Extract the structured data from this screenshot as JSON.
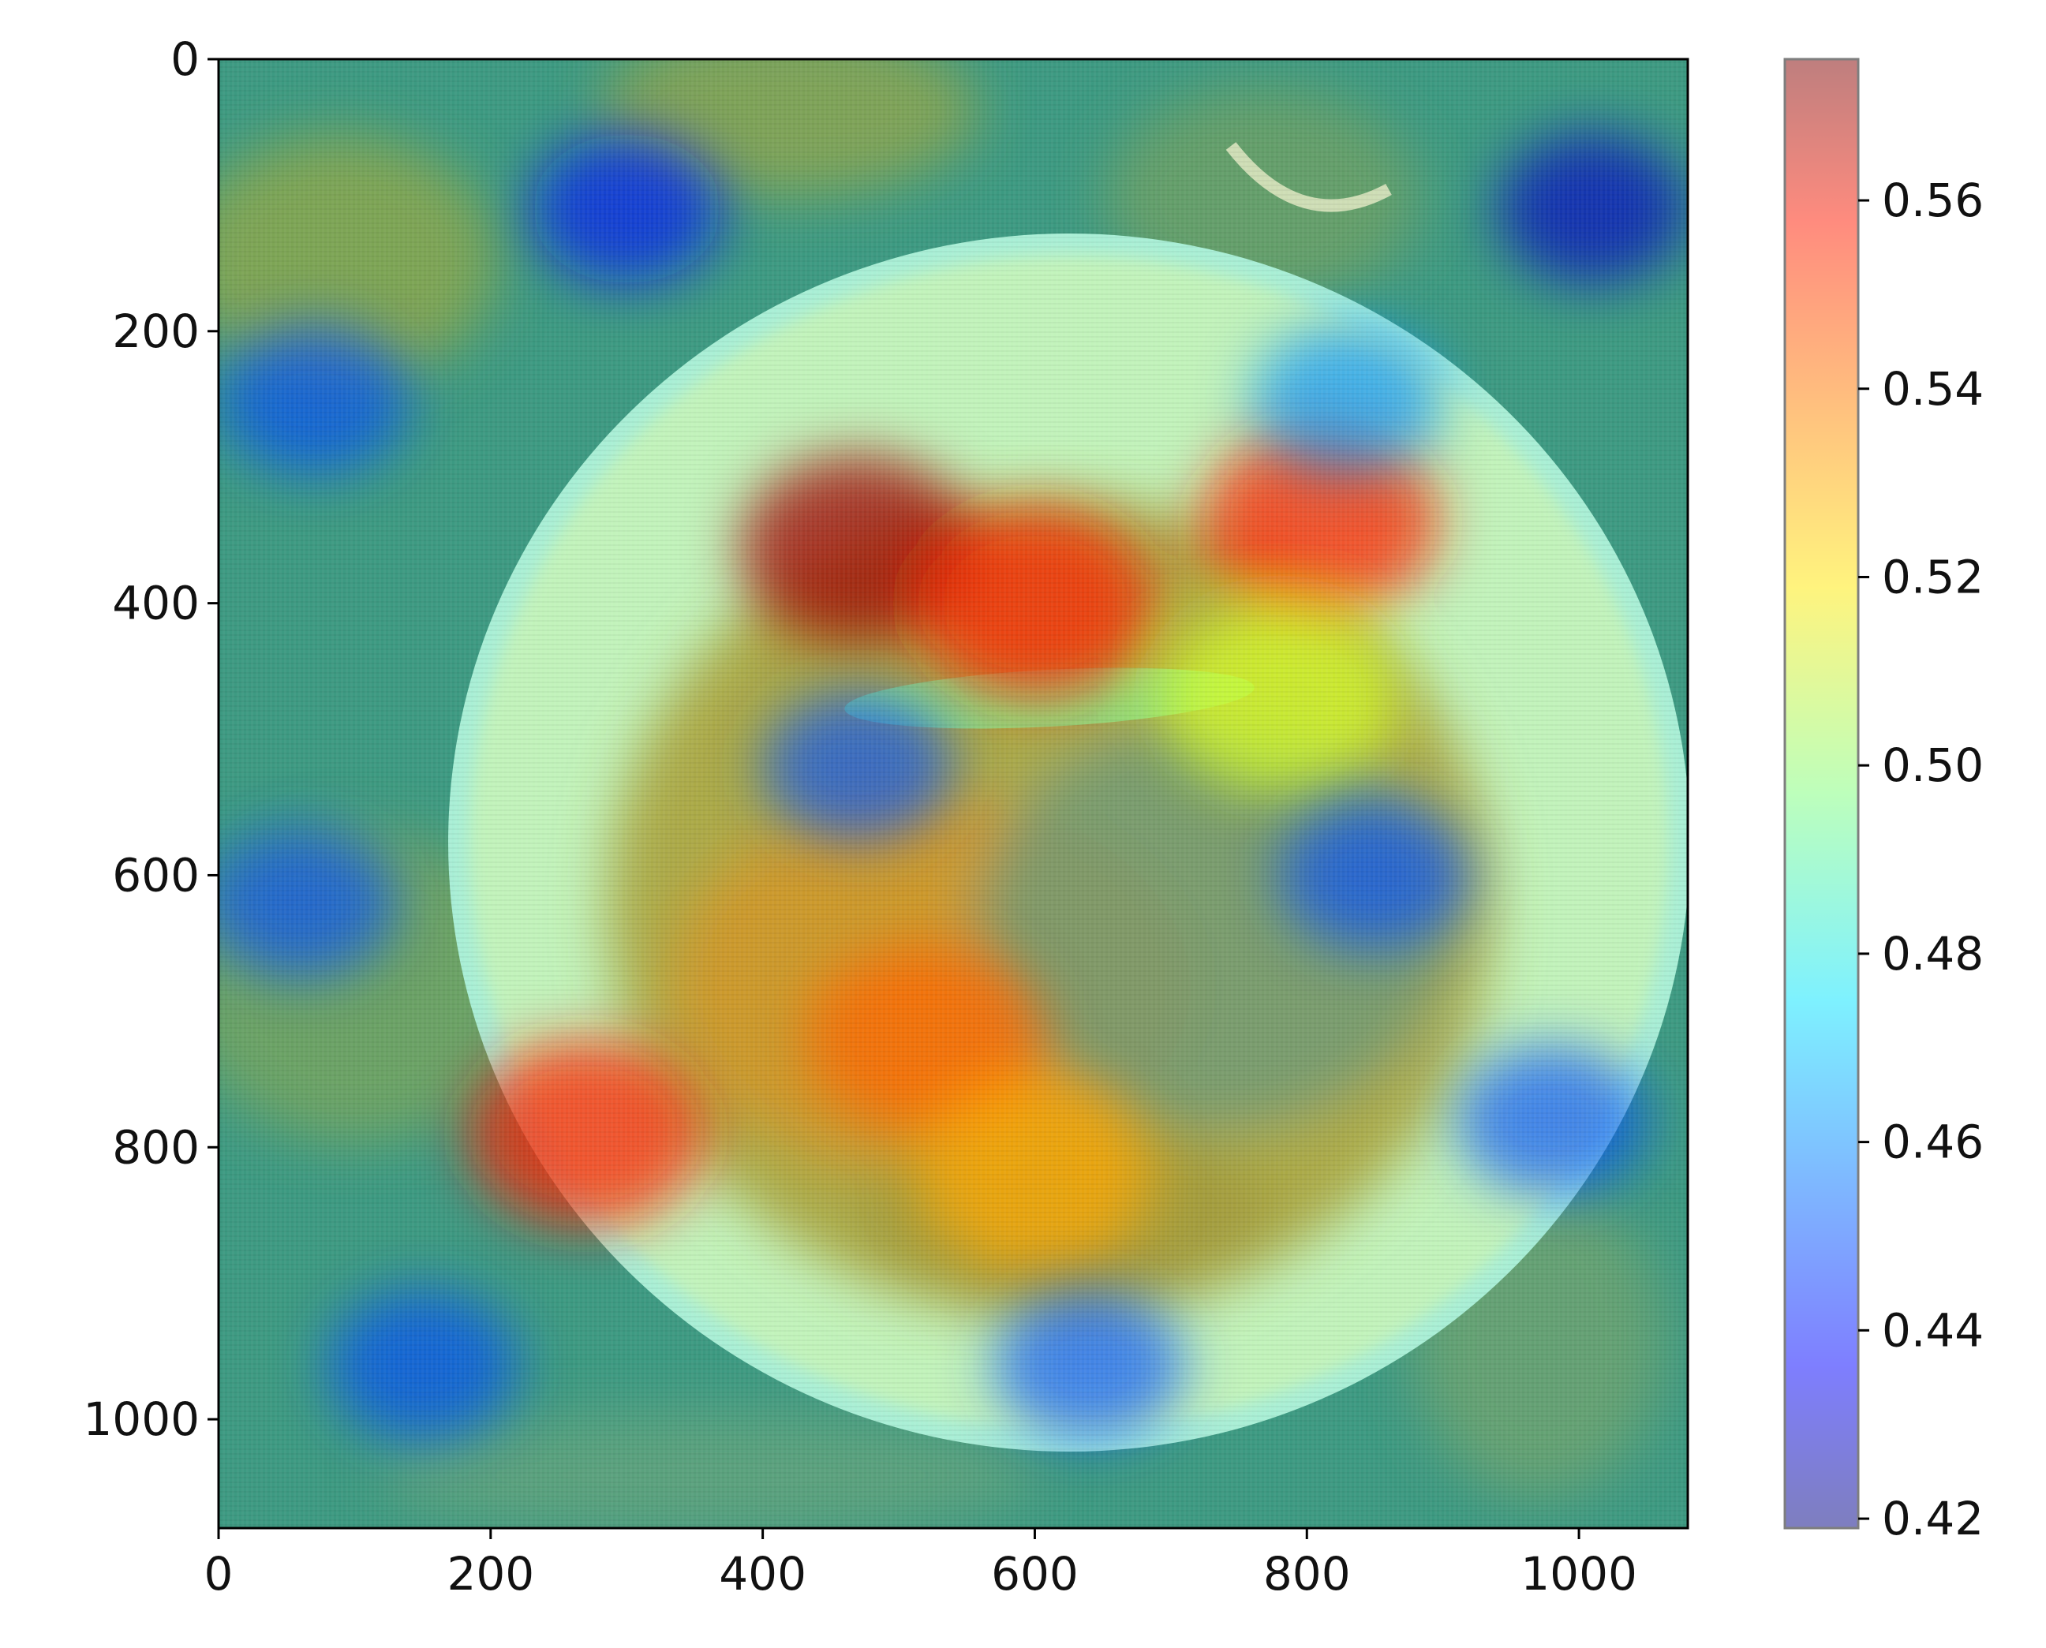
{
  "chart_data": {
    "type": "heatmap",
    "title": "",
    "xlabel": "",
    "ylabel": "",
    "xlim": [
      0,
      1080
    ],
    "ylim": [
      1080,
      0
    ],
    "x_ticks": [
      0,
      200,
      400,
      600,
      800,
      1000
    ],
    "x_tick_labels": [
      "0",
      "200",
      "400",
      "600",
      "800",
      "1000"
    ],
    "y_ticks": [
      0,
      200,
      400,
      600,
      800,
      1000
    ],
    "y_tick_labels": [
      "0",
      "200",
      "400",
      "600",
      "800",
      "1000"
    ],
    "background_image": "overhead photo of fried food pieces on a white plate with a green chili",
    "colormap": "jet",
    "overlay_alpha": 0.5,
    "colorbar": {
      "range": [
        0.419,
        0.575
      ],
      "ticks": [
        0.42,
        0.44,
        0.46,
        0.48,
        0.5,
        0.52,
        0.54,
        0.56
      ],
      "tick_labels": [
        "0.42",
        "0.44",
        "0.46",
        "0.48",
        "0.50",
        "0.52",
        "0.54",
        "0.56"
      ]
    },
    "hotspots": [
      {
        "x": 470,
        "y": 360,
        "value": 0.57
      },
      {
        "x": 600,
        "y": 400,
        "value": 0.55
      },
      {
        "x": 810,
        "y": 340,
        "value": 0.55
      },
      {
        "x": 520,
        "y": 720,
        "value": 0.54
      },
      {
        "x": 270,
        "y": 790,
        "value": 0.55
      },
      {
        "x": 600,
        "y": 820,
        "value": 0.53
      },
      {
        "x": 780,
        "y": 470,
        "value": 0.51
      }
    ],
    "coldspots": [
      {
        "x": 1010,
        "y": 110,
        "value": 0.43
      },
      {
        "x": 300,
        "y": 110,
        "value": 0.44
      },
      {
        "x": 70,
        "y": 250,
        "value": 0.45
      },
      {
        "x": 60,
        "y": 620,
        "value": 0.45
      },
      {
        "x": 470,
        "y": 520,
        "value": 0.45
      },
      {
        "x": 850,
        "y": 600,
        "value": 0.45
      },
      {
        "x": 980,
        "y": 780,
        "value": 0.45
      },
      {
        "x": 640,
        "y": 960,
        "value": 0.45
      },
      {
        "x": 150,
        "y": 960,
        "value": 0.45
      },
      {
        "x": 830,
        "y": 250,
        "value": 0.46
      }
    ]
  }
}
